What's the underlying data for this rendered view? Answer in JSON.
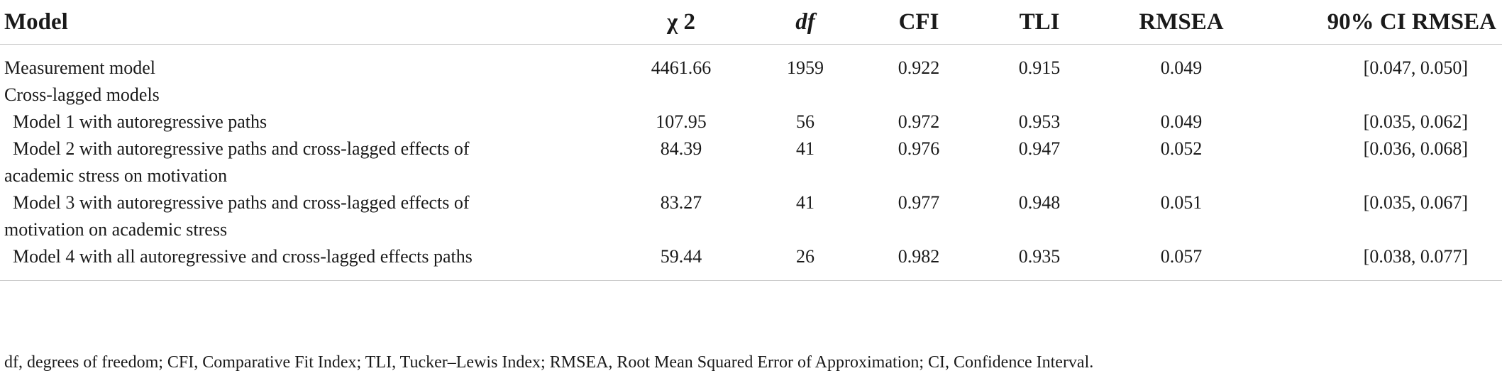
{
  "table": {
    "headers": {
      "model": "Model",
      "chi2": "χ 2",
      "df": "df",
      "cfi": "CFI",
      "tli": "TLI",
      "rmsea": "RMSEA",
      "ci": "90% CI RMSEA"
    },
    "rows": [
      {
        "model_line1": "Measurement model",
        "model_line2": "",
        "chi2": "4461.66",
        "df": "1959",
        "cfi": "0.922",
        "tli": "0.915",
        "rmsea": "0.049",
        "ci": "[0.047, 0.050]"
      },
      {
        "model_line1": "Cross-lagged models",
        "model_line2": "",
        "chi2": "",
        "df": "",
        "cfi": "",
        "tli": "",
        "rmsea": "",
        "ci": ""
      },
      {
        "model_line1": "Model 1 with autoregressive paths",
        "model_line2": "",
        "chi2": "107.95",
        "df": "56",
        "cfi": "0.972",
        "tli": "0.953",
        "rmsea": "0.049",
        "ci": "[0.035, 0.062]"
      },
      {
        "model_line1": "Model 2 with autoregressive paths and cross-lagged effects of",
        "model_line2": "academic stress on motivation",
        "chi2": "84.39",
        "df": "41",
        "cfi": "0.976",
        "tli": "0.947",
        "rmsea": "0.052",
        "ci": "[0.036, 0.068]"
      },
      {
        "model_line1": "Model 3 with autoregressive paths and cross-lagged effects of",
        "model_line2": "motivation on academic stress",
        "chi2": "83.27",
        "df": "41",
        "cfi": "0.977",
        "tli": "0.948",
        "rmsea": "0.051",
        "ci": "[0.035, 0.067]"
      },
      {
        "model_line1": "Model 4 with all autoregressive and cross-lagged effects paths",
        "model_line2": "",
        "chi2": "59.44",
        "df": "26",
        "cfi": "0.982",
        "tli": "0.935",
        "rmsea": "0.057",
        "ci": "[0.038, 0.077]"
      }
    ],
    "note": "df, degrees of freedom; CFI, Comparative Fit Index; TLI, Tucker–Lewis Index; RMSEA, Root Mean Squared Error of Approximation; CI, Confidence Interval."
  }
}
